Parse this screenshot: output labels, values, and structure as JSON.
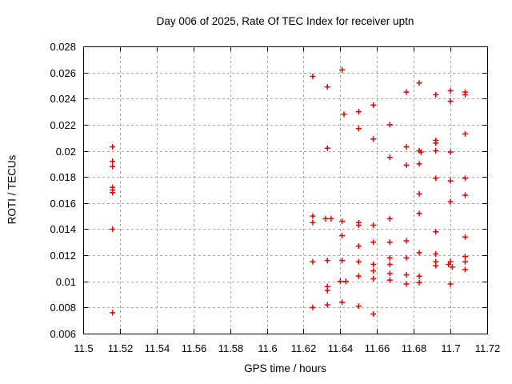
{
  "chart_data": {
    "type": "scatter",
    "title": "Day 006 of 2025, Rate Of TEC Index for receiver uptn",
    "xlabel": "GPS time / hours",
    "ylabel": "ROTI / TECUs",
    "xlim": [
      11.5,
      11.72
    ],
    "ylim": [
      0.006,
      0.028
    ],
    "grid": true,
    "legend": "none",
    "marker_shape": "plus",
    "marker_color": "#e60000",
    "grid_color": "#a8a8a8",
    "axis_color": "#000000",
    "background_color": "#ffffff",
    "x_ticks": {
      "values": [
        11.5,
        11.52,
        11.54,
        11.56,
        11.58,
        11.6,
        11.62,
        11.64,
        11.66,
        11.68,
        11.7,
        11.72
      ],
      "labels": [
        "11.5",
        "11.52",
        "11.54",
        "11.56",
        "11.58",
        "11.6",
        "11.62",
        "11.64",
        "11.66",
        "11.68",
        "11.7",
        "11.72"
      ]
    },
    "y_ticks": {
      "values": [
        0.006,
        0.008,
        0.01,
        0.012,
        0.014,
        0.016,
        0.018,
        0.02,
        0.022,
        0.024,
        0.026,
        0.028
      ],
      "labels": [
        "0.006",
        "0.008",
        "0.01",
        "0.012",
        "0.014",
        "0.016",
        "0.018",
        "0.02",
        "0.022",
        "0.024",
        "0.026",
        "0.028"
      ]
    },
    "series": [
      {
        "name": "ROTI",
        "points": [
          [
            11.516,
            0.0203
          ],
          [
            11.516,
            0.0192
          ],
          [
            11.516,
            0.0188
          ],
          [
            11.516,
            0.0172
          ],
          [
            11.516,
            0.017
          ],
          [
            11.516,
            0.0168
          ],
          [
            11.516,
            0.014
          ],
          [
            11.516,
            0.0076
          ],
          [
            11.625,
            0.0257
          ],
          [
            11.625,
            0.015
          ],
          [
            11.625,
            0.0145
          ],
          [
            11.625,
            0.0115
          ],
          [
            11.625,
            0.008
          ],
          [
            11.633,
            0.0249
          ],
          [
            11.633,
            0.0202
          ],
          [
            11.632,
            0.0148
          ],
          [
            11.635,
            0.0148
          ],
          [
            11.633,
            0.0116
          ],
          [
            11.633,
            0.0096
          ],
          [
            11.633,
            0.0093
          ],
          [
            11.633,
            0.0082
          ],
          [
            11.641,
            0.0262
          ],
          [
            11.642,
            0.0228
          ],
          [
            11.641,
            0.0146
          ],
          [
            11.641,
            0.0135
          ],
          [
            11.641,
            0.0116
          ],
          [
            11.64,
            0.01
          ],
          [
            11.643,
            0.01
          ],
          [
            11.641,
            0.0084
          ],
          [
            11.65,
            0.023
          ],
          [
            11.65,
            0.0217
          ],
          [
            11.65,
            0.0145
          ],
          [
            11.65,
            0.0143
          ],
          [
            11.65,
            0.0127
          ],
          [
            11.65,
            0.0115
          ],
          [
            11.65,
            0.0104
          ],
          [
            11.65,
            0.0081
          ],
          [
            11.658,
            0.0235
          ],
          [
            11.658,
            0.0209
          ],
          [
            11.658,
            0.0143
          ],
          [
            11.658,
            0.013
          ],
          [
            11.658,
            0.0113
          ],
          [
            11.658,
            0.0108
          ],
          [
            11.658,
            0.0102
          ],
          [
            11.658,
            0.0075
          ],
          [
            11.667,
            0.022
          ],
          [
            11.667,
            0.0195
          ],
          [
            11.667,
            0.0148
          ],
          [
            11.667,
            0.013
          ],
          [
            11.667,
            0.0118
          ],
          [
            11.667,
            0.0113
          ],
          [
            11.667,
            0.0106
          ],
          [
            11.667,
            0.0101
          ],
          [
            11.676,
            0.0245
          ],
          [
            11.676,
            0.0203
          ],
          [
            11.676,
            0.0189
          ],
          [
            11.676,
            0.0131
          ],
          [
            11.676,
            0.0118
          ],
          [
            11.676,
            0.0105
          ],
          [
            11.676,
            0.0098
          ],
          [
            11.683,
            0.0252
          ],
          [
            11.683,
            0.02
          ],
          [
            11.684,
            0.0199
          ],
          [
            11.683,
            0.019
          ],
          [
            11.683,
            0.0167
          ],
          [
            11.683,
            0.0152
          ],
          [
            11.683,
            0.0122
          ],
          [
            11.683,
            0.0104
          ],
          [
            11.683,
            0.0099
          ],
          [
            11.692,
            0.0243
          ],
          [
            11.692,
            0.0208
          ],
          [
            11.692,
            0.0206
          ],
          [
            11.692,
            0.02
          ],
          [
            11.692,
            0.0179
          ],
          [
            11.692,
            0.0138
          ],
          [
            11.692,
            0.0121
          ],
          [
            11.692,
            0.0115
          ],
          [
            11.692,
            0.0112
          ],
          [
            11.7,
            0.0246
          ],
          [
            11.7,
            0.0238
          ],
          [
            11.7,
            0.0199
          ],
          [
            11.7,
            0.0177
          ],
          [
            11.7,
            0.0161
          ],
          [
            11.7,
            0.0115
          ],
          [
            11.699,
            0.0113
          ],
          [
            11.701,
            0.0111
          ],
          [
            11.7,
            0.0098
          ],
          [
            11.708,
            0.0245
          ],
          [
            11.708,
            0.0243
          ],
          [
            11.708,
            0.0213
          ],
          [
            11.708,
            0.0179
          ],
          [
            11.708,
            0.0166
          ],
          [
            11.708,
            0.0134
          ],
          [
            11.708,
            0.0119
          ],
          [
            11.708,
            0.0115
          ],
          [
            11.708,
            0.0109
          ]
        ]
      }
    ]
  }
}
